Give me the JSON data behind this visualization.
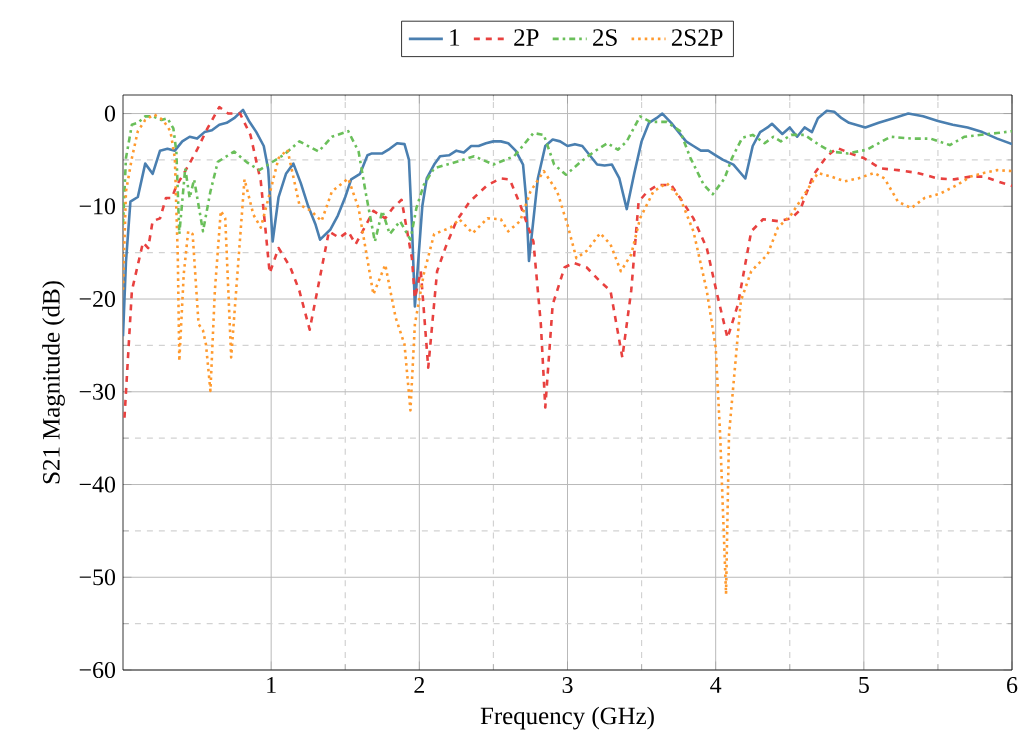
{
  "chart_data": {
    "type": "line",
    "xlabel": "Frequency (GHz)",
    "ylabel": "S21 Magnitude (dB)",
    "xlim": [
      0,
      6
    ],
    "ylim": [
      -60,
      2
    ],
    "xticks": [
      1,
      2,
      3,
      4,
      5,
      6
    ],
    "yticks": [
      {
        "value": -60,
        "label": "−60"
      },
      {
        "value": -50,
        "label": "−50"
      },
      {
        "value": -40,
        "label": "−40"
      },
      {
        "value": -30,
        "label": "−30"
      },
      {
        "value": -20,
        "label": "−20"
      },
      {
        "value": -10,
        "label": "−10"
      },
      {
        "value": 0,
        "label": "0"
      }
    ],
    "grid": true,
    "legend": "top",
    "series": [
      {
        "name": "1",
        "color": "#4a7fb0",
        "line_style": "solid",
        "x": [
          0.0,
          0.02,
          0.05,
          0.1,
          0.15,
          0.2,
          0.25,
          0.3,
          0.35,
          0.4,
          0.45,
          0.5,
          0.55,
          0.6,
          0.65,
          0.7,
          0.75,
          0.81,
          0.85,
          0.9,
          0.95,
          0.98,
          1.01,
          1.05,
          1.1,
          1.15,
          1.2,
          1.25,
          1.3,
          1.33,
          1.4,
          1.45,
          1.5,
          1.54,
          1.6,
          1.65,
          1.68,
          1.75,
          1.8,
          1.85,
          1.9,
          1.93,
          1.95,
          1.97,
          2.02,
          2.05,
          2.1,
          2.14,
          2.2,
          2.25,
          2.3,
          2.35,
          2.4,
          2.45,
          2.5,
          2.55,
          2.6,
          2.65,
          2.7,
          2.72,
          2.74,
          2.8,
          2.85,
          2.9,
          2.95,
          3.0,
          3.05,
          3.1,
          3.15,
          3.2,
          3.25,
          3.3,
          3.35,
          3.4,
          3.45,
          3.5,
          3.55,
          3.6,
          3.64,
          3.7,
          3.75,
          3.8,
          3.85,
          3.9,
          3.95,
          4.0,
          4.05,
          4.12,
          4.2,
          4.25,
          4.3,
          4.35,
          4.38,
          4.45,
          4.5,
          4.55,
          4.6,
          4.65,
          4.69,
          4.75,
          4.8,
          4.85,
          4.9,
          5.01,
          5.1,
          5.2,
          5.3,
          5.4,
          5.5,
          5.6,
          5.7,
          5.8,
          5.9,
          6.0
        ],
        "values": [
          -24,
          -16,
          -9.5,
          -9,
          -5.4,
          -6.5,
          -4,
          -3.8,
          -4,
          -3,
          -2.5,
          -2.7,
          -2,
          -1.8,
          -1.2,
          -1,
          -0.5,
          0.4,
          -0.8,
          -2,
          -3.5,
          -6,
          -13.8,
          -9,
          -6.5,
          -5.4,
          -7.5,
          -10,
          -12,
          -13.6,
          -12.5,
          -11,
          -9,
          -7.1,
          -6.5,
          -4.5,
          -4.3,
          -4.3,
          -3.8,
          -3.2,
          -3.3,
          -5,
          -12,
          -20.8,
          -10,
          -7,
          -5.5,
          -4.6,
          -4.5,
          -4,
          -4.2,
          -3.5,
          -3.5,
          -3.2,
          -3,
          -3,
          -3.2,
          -4,
          -5.5,
          -9,
          -15.9,
          -7,
          -3.5,
          -2.8,
          -3,
          -3.5,
          -3.3,
          -3.5,
          -4.5,
          -5.5,
          -5.6,
          -5.5,
          -7,
          -10.3,
          -6.5,
          -3,
          -1,
          -0.5,
          0,
          -1,
          -2,
          -3,
          -3.5,
          -4,
          -4,
          -4.5,
          -5,
          -5.5,
          -7,
          -3.5,
          -2,
          -1.5,
          -1.1,
          -2.2,
          -1.5,
          -2.5,
          -1.5,
          -2,
          -0.5,
          0.3,
          0.2,
          -0.5,
          -1,
          -1.5,
          -1,
          -0.5,
          0,
          -0.3,
          -0.8,
          -1.2,
          -1.5,
          -2,
          -2.7,
          -3.3
        ]
      },
      {
        "name": "2P",
        "color": "#e8413f",
        "line_style": "dashed",
        "x": [
          0.01,
          0.06,
          0.135,
          0.17,
          0.2,
          0.25,
          0.29,
          0.33,
          0.36,
          0.42,
          0.5,
          0.57,
          0.65,
          0.71,
          0.79,
          0.86,
          0.93,
          0.99,
          1.05,
          1.13,
          1.19,
          1.26,
          1.32,
          1.39,
          1.46,
          1.52,
          1.57,
          1.63,
          1.69,
          1.77,
          1.82,
          1.88,
          1.95,
          1.97,
          2.01,
          2.06,
          2.12,
          2.18,
          2.25,
          2.34,
          2.46,
          2.55,
          2.61,
          2.68,
          2.77,
          2.82,
          2.85,
          2.9,
          2.98,
          3.04,
          3.13,
          3.22,
          3.29,
          3.37,
          3.43,
          3.48,
          3.54,
          3.61,
          3.7,
          3.76,
          3.85,
          3.94,
          4.01,
          4.08,
          4.15,
          4.24,
          4.32,
          4.42,
          4.51,
          4.57,
          4.66,
          4.75,
          4.82,
          4.91,
          5.0,
          5.11,
          5.23,
          5.36,
          5.5,
          5.61,
          5.72,
          5.81,
          5.9,
          6.0
        ],
        "values": [
          -32.8,
          -19.1,
          -13.9,
          -14.5,
          -11.6,
          -11.3,
          -9.1,
          -9.1,
          -7.8,
          -6.2,
          -3.9,
          -1.6,
          0.7,
          0,
          0,
          -2.3,
          -7.3,
          -17.2,
          -14.5,
          -16.6,
          -19.1,
          -23.3,
          -18.4,
          -12.7,
          -13.4,
          -12.7,
          -14.1,
          -12.3,
          -10.5,
          -11.3,
          -10.2,
          -9.3,
          -15.6,
          -19.9,
          -17,
          -27.4,
          -17,
          -14.3,
          -11.6,
          -9.5,
          -7.7,
          -7,
          -7.1,
          -9.8,
          -13.8,
          -22.7,
          -31.7,
          -20.6,
          -16.6,
          -16.1,
          -16.6,
          -18.1,
          -19.1,
          -26.3,
          -19.1,
          -9.5,
          -8.4,
          -7.7,
          -7.7,
          -9.1,
          -11.3,
          -14.5,
          -19.5,
          -24.2,
          -20.6,
          -12.7,
          -11.4,
          -11.6,
          -11.3,
          -10.4,
          -6.6,
          -4.6,
          -3.7,
          -4.3,
          -4.8,
          -5.9,
          -6.1,
          -6.4,
          -7,
          -7.1,
          -6.8,
          -6.8,
          -7.3,
          -7.8
        ]
      },
      {
        "name": "2S",
        "color": "#6abf5a",
        "line_style": "dashdot",
        "x": [
          0.0,
          0.02,
          0.06,
          0.1,
          0.15,
          0.2,
          0.26,
          0.3,
          0.34,
          0.36,
          0.38,
          0.42,
          0.45,
          0.48,
          0.54,
          0.59,
          0.64,
          0.75,
          0.84,
          0.92,
          1.0,
          1.09,
          1.19,
          1.32,
          1.41,
          1.52,
          1.59,
          1.64,
          1.7,
          1.75,
          1.8,
          1.87,
          1.94,
          1.98,
          2.03,
          2.1,
          2.23,
          2.37,
          2.5,
          2.64,
          2.77,
          2.84,
          2.91,
          2.99,
          3.09,
          3.18,
          3.27,
          3.34,
          3.4,
          3.49,
          3.56,
          3.67,
          3.76,
          3.83,
          3.92,
          3.98,
          4.06,
          4.11,
          4.18,
          4.25,
          4.33,
          4.39,
          4.44,
          4.51,
          4.6,
          4.7,
          4.78,
          4.89,
          5.02,
          5.18,
          5.32,
          5.45,
          5.58,
          5.68,
          5.79,
          5.9,
          6.0
        ],
        "values": [
          -12,
          -4.8,
          -1.2,
          -1,
          -0.3,
          -0.3,
          -0.7,
          -0.5,
          -1.6,
          -4.1,
          -13,
          -5.9,
          -9.1,
          -7.1,
          -12.7,
          -8.4,
          -5.2,
          -4.1,
          -5.3,
          -6.1,
          -5.3,
          -4.4,
          -3,
          -4.1,
          -2.5,
          -1.9,
          -4.1,
          -8.7,
          -13.8,
          -10.5,
          -13,
          -11.6,
          -13.6,
          -10.2,
          -7.7,
          -5.9,
          -5.3,
          -4.6,
          -5.5,
          -4.6,
          -2.1,
          -2.3,
          -5.5,
          -6.6,
          -5.2,
          -4.1,
          -3.2,
          -3.9,
          -3,
          -0.3,
          -0.9,
          -0.9,
          -1.9,
          -4.8,
          -7.7,
          -8.7,
          -7,
          -4.8,
          -2.6,
          -2.3,
          -3.2,
          -2.5,
          -3,
          -2.3,
          -2.3,
          -3.4,
          -4.1,
          -4.3,
          -3.9,
          -2.5,
          -2.7,
          -2.7,
          -3.4,
          -2.5,
          -2.3,
          -2.1,
          -1.9
        ]
      },
      {
        "name": "2S2P",
        "color": "#ff9a2e",
        "line_style": "dotted",
        "x": [
          0.0,
          0.02,
          0.06,
          0.1,
          0.15,
          0.21,
          0.27,
          0.32,
          0.35,
          0.37,
          0.38,
          0.41,
          0.44,
          0.47,
          0.51,
          0.54,
          0.56,
          0.59,
          0.62,
          0.66,
          0.69,
          0.73,
          0.78,
          0.82,
          0.88,
          0.93,
          1.0,
          1.05,
          1.11,
          1.19,
          1.27,
          1.34,
          1.41,
          1.52,
          1.59,
          1.69,
          1.77,
          1.84,
          1.9,
          1.94,
          1.97,
          2.03,
          2.1,
          2.21,
          2.27,
          2.36,
          2.46,
          2.55,
          2.6,
          2.68,
          2.75,
          2.84,
          2.93,
          3.0,
          3.06,
          3.13,
          3.22,
          3.29,
          3.36,
          3.43,
          3.49,
          3.58,
          3.67,
          3.76,
          3.85,
          3.94,
          4.0,
          4.03,
          4.07,
          4.09,
          4.17,
          4.24,
          4.35,
          4.42,
          4.51,
          4.6,
          4.69,
          4.78,
          4.87,
          4.96,
          5.07,
          5.14,
          5.23,
          5.32,
          5.41,
          5.52,
          5.63,
          5.72,
          5.81,
          5.9,
          6.0
        ],
        "values": [
          -19,
          -8.4,
          -4.8,
          -1.9,
          -0.7,
          -0.1,
          -0.7,
          -1.9,
          -4.8,
          -15.6,
          -26.7,
          -17.3,
          -12.7,
          -13,
          -22.7,
          -23.4,
          -24.9,
          -29.9,
          -19.1,
          -10.5,
          -11.3,
          -26.3,
          -15.6,
          -7.1,
          -10.9,
          -12.3,
          -8,
          -4.8,
          -3.9,
          -9.8,
          -10.5,
          -11.6,
          -8.4,
          -7,
          -10.2,
          -19.5,
          -16.3,
          -22,
          -24.9,
          -32,
          -22.7,
          -17.3,
          -13,
          -12.3,
          -11.4,
          -12.9,
          -11.3,
          -11.4,
          -12.7,
          -11.6,
          -8.4,
          -6.2,
          -8.4,
          -12,
          -15.6,
          -14.8,
          -12.9,
          -14.1,
          -17,
          -15.2,
          -11.3,
          -8.4,
          -7.5,
          -9.1,
          -12.7,
          -19.1,
          -25.2,
          -34.6,
          -51.8,
          -34.6,
          -20.2,
          -17,
          -15.2,
          -12.3,
          -10.9,
          -8.7,
          -6.4,
          -6.8,
          -7.3,
          -7,
          -6.4,
          -7,
          -9.5,
          -10.2,
          -9.1,
          -8.6,
          -7.7,
          -6.8,
          -6.4,
          -6.1,
          -6.2
        ]
      }
    ]
  }
}
